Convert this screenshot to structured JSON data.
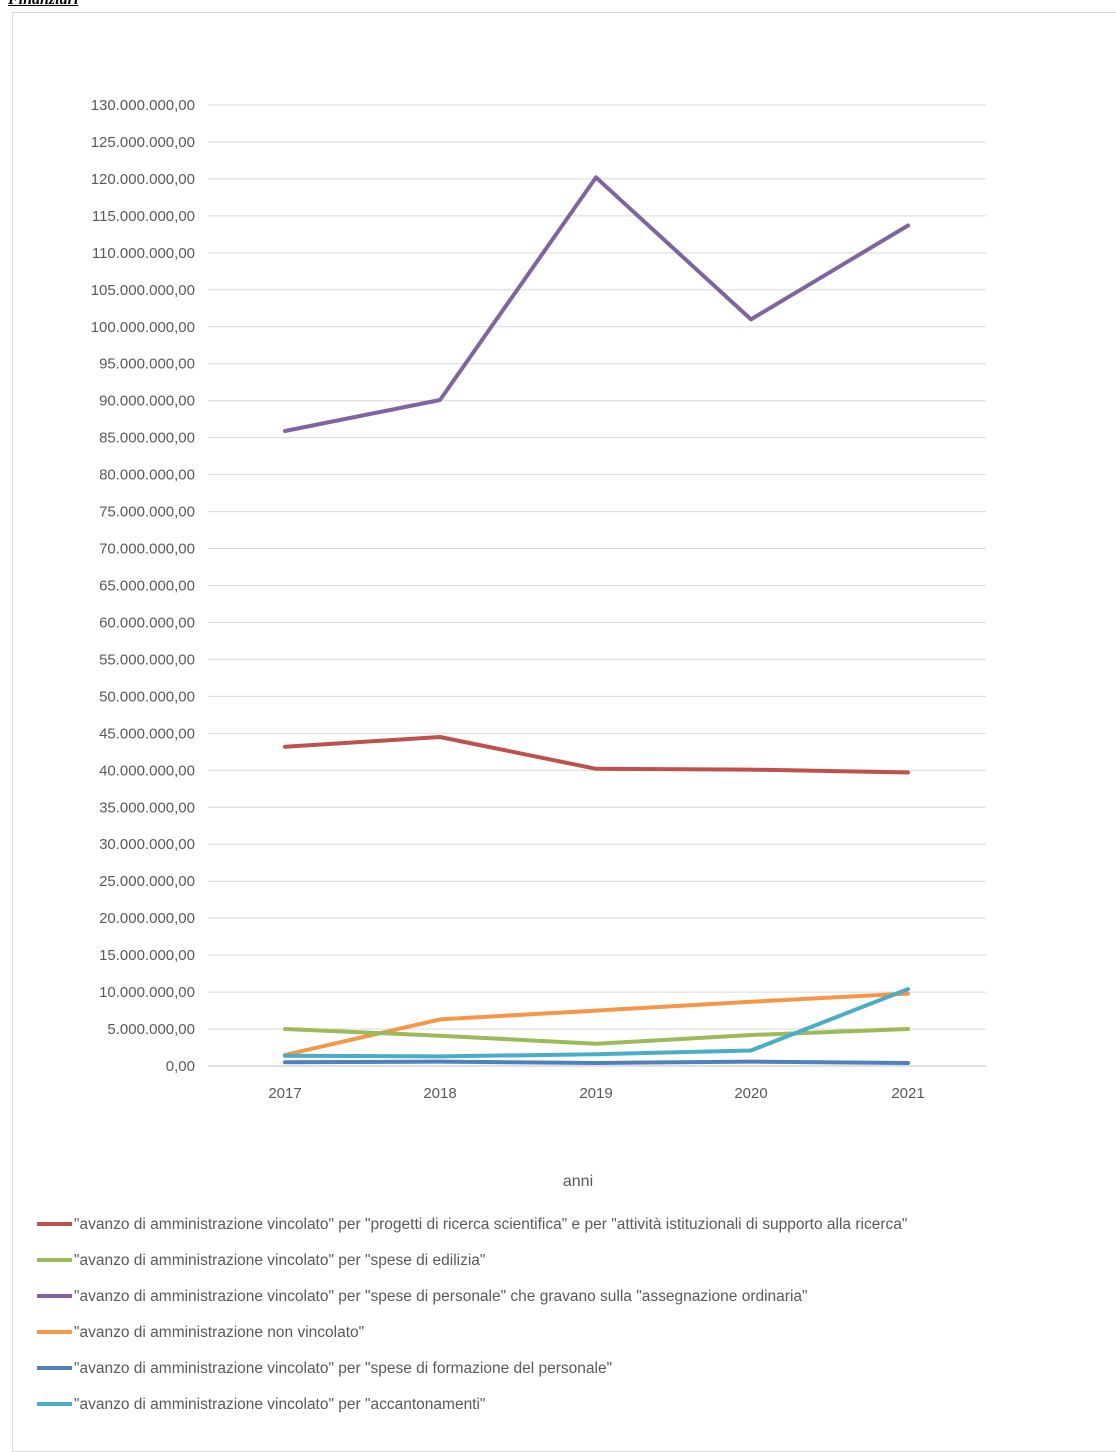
{
  "header": {
    "text": "Finanziari"
  },
  "chart_data": {
    "type": "line",
    "xlabel": "anni",
    "ylabel": "",
    "categories": [
      "2017",
      "2018",
      "2019",
      "2020",
      "2021"
    ],
    "ylim": [
      0,
      130000000
    ],
    "ytick_step": 5000000,
    "ytick_labels": [
      "0,00",
      "5.000.000,00",
      "10.000.000,00",
      "15.000.000,00",
      "20.000.000,00",
      "25.000.000,00",
      "30.000.000,00",
      "35.000.000,00",
      "40.000.000,00",
      "45.000.000,00",
      "50.000.000,00",
      "55.000.000,00",
      "60.000.000,00",
      "65.000.000,00",
      "70.000.000,00",
      "75.000.000,00",
      "80.000.000,00",
      "85.000.000,00",
      "90.000.000,00",
      "95.000.000,00",
      "100.000.000,00",
      "105.000.000,00",
      "110.000.000,00",
      "115.000.000,00",
      "120.000.000,00",
      "125.000.000,00",
      "130.000.000,00"
    ],
    "grid": true,
    "legend_position": "bottom",
    "series": [
      {
        "name": "\"avanzo di amministrazione vincolato\" per \"progetti di ricerca scientifica\" e per \"attività istituzionali di supporto alla ricerca\"",
        "color": "#c0504d",
        "values": [
          43200000,
          44500000,
          40200000,
          40100000,
          39700000
        ]
      },
      {
        "name": "\"avanzo di amministrazione vincolato\" per \"spese di edilizia\"",
        "color": "#9bbb59",
        "values": [
          5000000,
          4100000,
          3000000,
          4200000,
          5000000
        ]
      },
      {
        "name": "\"avanzo di amministrazione vincolato\" per \"spese di personale\" che gravano sulla \"assegnazione ordinaria\"",
        "color": "#8064a2",
        "values": [
          85900000,
          90100000,
          120200000,
          101000000,
          113700000
        ]
      },
      {
        "name": "\"avanzo di amministrazione non vincolato\"",
        "color": "#f79646",
        "values": [
          1500000,
          6300000,
          7500000,
          8700000,
          9800000
        ]
      },
      {
        "name": "\"avanzo di amministrazione vincolato\" per \"spese di formazione del personale\"",
        "color": "#4f81bd",
        "values": [
          500000,
          600000,
          400000,
          600000,
          400000
        ]
      },
      {
        "name": "\"avanzo di amministrazione vincolato\" per \"accantonamenti\"",
        "color": "#4bacc6",
        "values": [
          1400000,
          1300000,
          1600000,
          2100000,
          10400000
        ]
      }
    ]
  }
}
